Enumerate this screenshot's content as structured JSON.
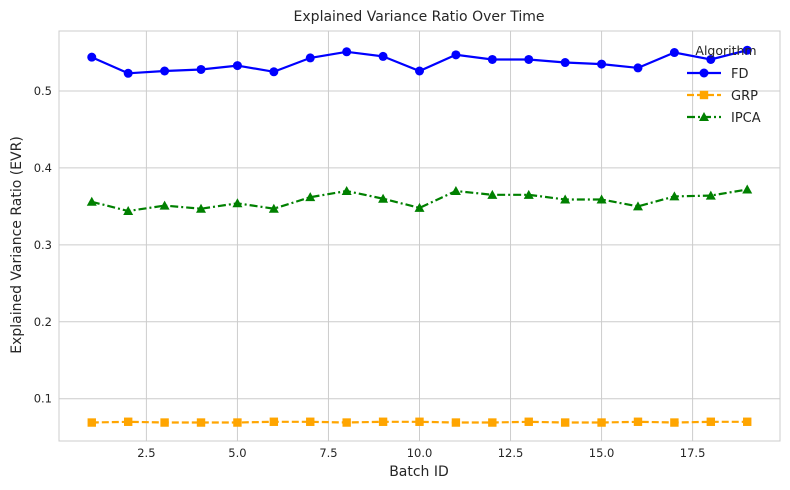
{
  "chart_data": {
    "type": "line",
    "title": "Explained Variance Ratio Over Time",
    "xlabel": "Batch ID",
    "ylabel": "Explained Variance Ratio (EVR)",
    "xlim": [
      0.1,
      19.9
    ],
    "ylim": [
      0.045,
      0.578
    ],
    "xticks": [
      2.5,
      5.0,
      7.5,
      10.0,
      12.5,
      15.0,
      17.5
    ],
    "xtick_labels": [
      "2.5",
      "5.0",
      "7.5",
      "10.0",
      "12.5",
      "15.0",
      "17.5"
    ],
    "yticks": [
      0.1,
      0.2,
      0.3,
      0.4,
      0.5
    ],
    "ytick_labels": [
      "0.1",
      "0.2",
      "0.3",
      "0.4",
      "0.5"
    ],
    "grid": true,
    "legend": {
      "title": "Algorithm",
      "position": "top-right"
    },
    "x": [
      1,
      2,
      3,
      4,
      5,
      6,
      7,
      8,
      9,
      10,
      11,
      12,
      13,
      14,
      15,
      16,
      17,
      18,
      19
    ],
    "series": [
      {
        "name": "FD",
        "color": "#0000ff",
        "marker": "circle",
        "linestyle": "solid",
        "values": [
          0.544,
          0.523,
          0.526,
          0.528,
          0.533,
          0.525,
          0.543,
          0.551,
          0.545,
          0.526,
          0.547,
          0.541,
          0.541,
          0.537,
          0.535,
          0.53,
          0.55,
          0.541,
          0.553
        ]
      },
      {
        "name": "GRP",
        "color": "#ffa500",
        "marker": "square",
        "linestyle": "dashed",
        "values": [
          0.069,
          0.07,
          0.069,
          0.069,
          0.069,
          0.07,
          0.07,
          0.069,
          0.07,
          0.07,
          0.069,
          0.069,
          0.07,
          0.069,
          0.069,
          0.07,
          0.069,
          0.07,
          0.07
        ]
      },
      {
        "name": "IPCA",
        "color": "#008000",
        "marker": "triangle",
        "linestyle": "dashdot",
        "values": [
          0.356,
          0.344,
          0.351,
          0.347,
          0.354,
          0.347,
          0.362,
          0.37,
          0.36,
          0.348,
          0.37,
          0.365,
          0.365,
          0.359,
          0.359,
          0.35,
          0.363,
          0.364,
          0.372
        ]
      }
    ]
  }
}
